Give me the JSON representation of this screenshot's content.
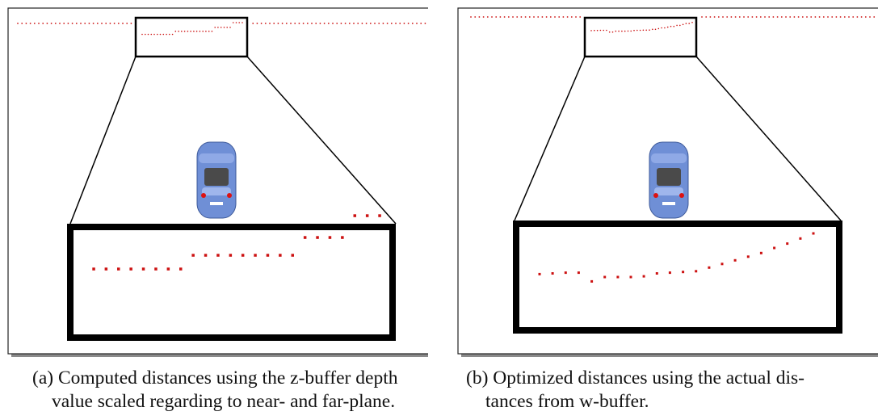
{
  "figures": [
    {
      "id": "a",
      "caption_lines": [
        "(a) Computed distances using the z-buffer depth",
        "value scaled regarding to near- and far-plane."
      ],
      "dot_color": "#cc1111",
      "zoom_points_profile": [
        0.16,
        0.16,
        0.16,
        0.16,
        0.16,
        0.16,
        0.16,
        0.16,
        0.33,
        0.33,
        0.33,
        0.33,
        0.33,
        0.33,
        0.33,
        0.33,
        0.33,
        0.55,
        0.55,
        0.55,
        0.55,
        0.82,
        0.82,
        0.82
      ]
    },
    {
      "id": "b",
      "caption_lines": [
        "(b) Optimized distances using the actual dis-",
        "tances from w-buffer."
      ],
      "dot_color": "#cc1111",
      "zoom_points_profile": [
        0.34,
        0.35,
        0.36,
        0.36,
        0.24,
        0.3,
        0.3,
        0.3,
        0.31,
        0.35,
        0.36,
        0.37,
        0.38,
        0.43,
        0.48,
        0.53,
        0.58,
        0.63,
        0.7,
        0.76,
        0.83,
        0.9
      ]
    }
  ],
  "colors": {
    "car_body": "#6f8fd6",
    "car_window": "#4a4a4a",
    "frame": "#000000",
    "shadow": "#8a8a8a"
  }
}
